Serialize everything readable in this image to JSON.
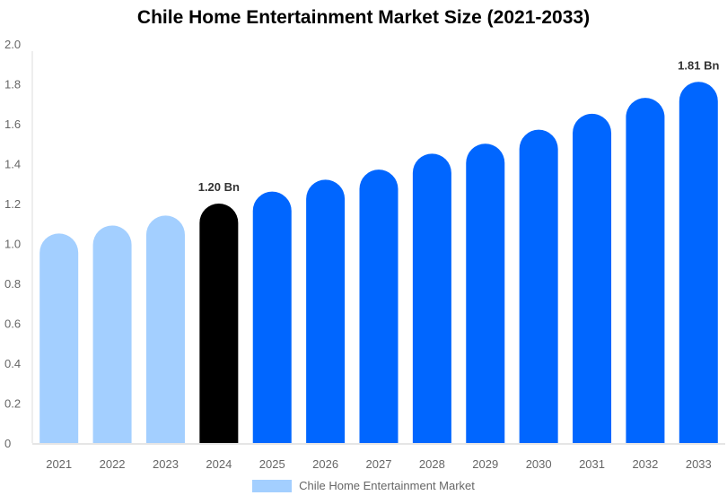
{
  "chart_data": {
    "type": "bar",
    "title": "Chile Home Entertainment Market Size (2021-2033)",
    "xlabel": "",
    "ylabel": "",
    "categories": [
      "2021",
      "2022",
      "2023",
      "2024",
      "2025",
      "2026",
      "2027",
      "2028",
      "2029",
      "2030",
      "2031",
      "2032",
      "2033"
    ],
    "series": [
      {
        "name": "Chile Home Entertainment Market",
        "values": [
          1.05,
          1.09,
          1.14,
          1.2,
          1.26,
          1.32,
          1.37,
          1.45,
          1.5,
          1.57,
          1.65,
          1.73,
          1.81
        ]
      }
    ],
    "ylim": [
      0,
      2.0
    ],
    "yticks": [
      "0",
      "0.2",
      "0.4",
      "0.6",
      "0.8",
      "1.0",
      "1.2",
      "1.4",
      "1.6",
      "1.8",
      "2.0"
    ],
    "grid": false,
    "legend_position": "bottom",
    "data_labels": [
      {
        "category": "2024",
        "text": "1.20 Bn"
      },
      {
        "category": "2033",
        "text": "1.81 Bn"
      }
    ],
    "colors": {
      "historical": "#a3cfff",
      "base_year": "#000000",
      "forecast": "#0066ff"
    },
    "color_groups": [
      "historical",
      "historical",
      "historical",
      "base_year",
      "forecast",
      "forecast",
      "forecast",
      "forecast",
      "forecast",
      "forecast",
      "forecast",
      "forecast",
      "forecast"
    ]
  }
}
